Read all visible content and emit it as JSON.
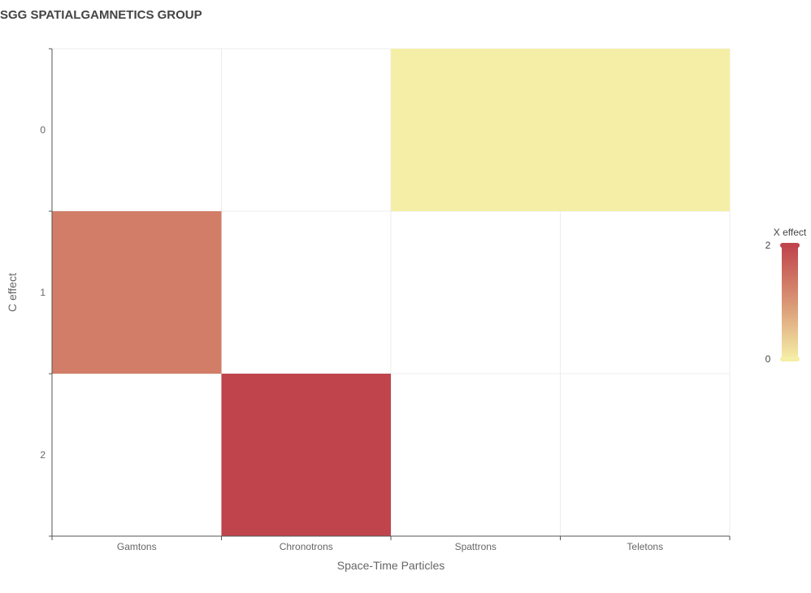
{
  "chart_data": {
    "type": "heatmap",
    "title": "SGG SPATIALGAMNETICS GROUP",
    "xlabel": "Space-Time Particles",
    "ylabel": "C effect",
    "x_categories": [
      "Gamtons",
      "Chronotrons",
      "Spattrons",
      "Teletons"
    ],
    "y_categories": [
      "0",
      "1",
      "2"
    ],
    "cells": [
      {
        "x": "Spattrons",
        "y": "0",
        "value": 0
      },
      {
        "x": "Teletons",
        "y": "0",
        "value": 0
      },
      {
        "x": "Gamtons",
        "y": "1",
        "value": 1.3
      },
      {
        "x": "Chronotrons",
        "y": "2",
        "value": 2
      }
    ],
    "color_scale": {
      "title": "X effect",
      "min": 0,
      "max": 2,
      "min_color": "#f5eea6",
      "mid_color": "#d99574",
      "max_color": "#c0444c",
      "ticks": [
        "2",
        "0"
      ],
      "placement": "right"
    },
    "grid": true
  }
}
